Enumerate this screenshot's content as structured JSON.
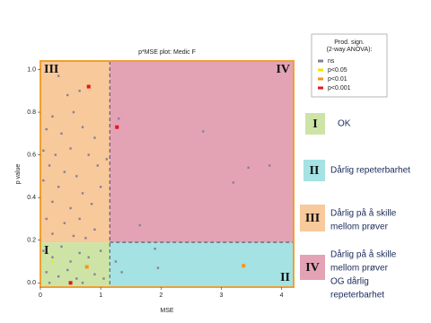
{
  "chart_data": {
    "type": "scatter",
    "title": "p*MSE plot: Medic F",
    "x_label": "MSE",
    "y_label": "p value",
    "xlim": [
      0,
      4.2
    ],
    "ylim": [
      -0.02,
      1.04
    ],
    "xticks": [
      0,
      1,
      2,
      3,
      4
    ],
    "yticks": [
      {
        "value": 0,
        "label": "0.0"
      },
      0.2,
      0.4,
      0.6,
      0.8,
      {
        "value": 1,
        "label": "1.0"
      }
    ],
    "thresholds": {
      "x": 1.15,
      "y": 0.19
    },
    "legend_title": [
      "Prod. sign.",
      "(2-way ANOVA):"
    ],
    "series": [
      {
        "name": "ns",
        "color": "#8a7f9a",
        "x": [
          0.3,
          0.45,
          0.65,
          0.2,
          0.55,
          0.1,
          0.35,
          0.7,
          0.9,
          0.05,
          0.25,
          0.5,
          0.8,
          0.15,
          0.4,
          0.6,
          0.95,
          0.05,
          0.3,
          0.7,
          1.0,
          0.2,
          0.5,
          0.85,
          0.1,
          0.4,
          0.65,
          0.9,
          0.2,
          0.55,
          0.75,
          1.1,
          1.3,
          2.7,
          1.65,
          3.2,
          3.45,
          3.8,
          0.05,
          0.2,
          0.35,
          0.5,
          0.65,
          0.8,
          1.0,
          0.1,
          0.3,
          0.45,
          0.6,
          0.9,
          1.05,
          0.15,
          0.7,
          1.25,
          1.35,
          1.9,
          1.95
        ],
        "values": [
          0.97,
          0.88,
          0.9,
          0.78,
          0.8,
          0.72,
          0.7,
          0.73,
          0.68,
          0.62,
          0.6,
          0.63,
          0.6,
          0.55,
          0.52,
          0.5,
          0.55,
          0.48,
          0.45,
          0.42,
          0.45,
          0.38,
          0.35,
          0.37,
          0.3,
          0.28,
          0.3,
          0.25,
          0.23,
          0.22,
          0.21,
          0.58,
          0.77,
          0.71,
          0.27,
          0.47,
          0.54,
          0.55,
          0.15,
          0.12,
          0.17,
          0.1,
          0.14,
          0.12,
          0.15,
          0.05,
          0.03,
          0.06,
          0.02,
          0.04,
          0.02,
          0.0,
          0.0,
          0.1,
          0.05,
          0.16,
          0.07
        ]
      },
      {
        "name": "p<0.05",
        "color": "#f2e600",
        "x": [
          0.2
        ],
        "values": [
          0.1
        ]
      },
      {
        "name": "p<0.01",
        "color": "#f7941d",
        "x": [
          0.77,
          3.37
        ],
        "values": [
          0.075,
          0.08
        ]
      },
      {
        "name": "p<0.001",
        "color": "#e8141c",
        "x": [
          0.8,
          1.27,
          0.5
        ],
        "values": [
          0.92,
          0.73,
          0.0
        ]
      }
    ],
    "quadrants": [
      {
        "numeral": "I",
        "color": "#cde4a6",
        "description": [
          "OK"
        ]
      },
      {
        "numeral": "II",
        "color": "#a5e2e3",
        "description": [
          "Dårlig repeterbarhet"
        ]
      },
      {
        "numeral": "III",
        "color": "#f7c99b",
        "description": [
          "Dårlig på å skille",
          "mellom prøver"
        ]
      },
      {
        "numeral": "IV",
        "color": "#e3a3b5",
        "description": [
          "Dårlig på å skille",
          "mellom prøver",
          "OG dårlig",
          "repeterbarhet"
        ]
      }
    ]
  }
}
